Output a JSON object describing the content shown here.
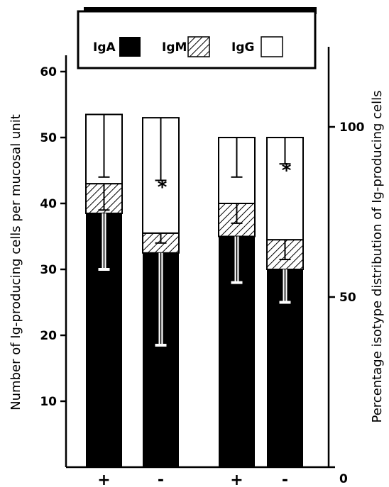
{
  "chart_data": {
    "type": "bar",
    "stacked": true,
    "categories": [
      "+",
      "-",
      "+",
      "-"
    ],
    "series": [
      {
        "name": "IgA",
        "values": [
          38.5,
          32.5,
          35,
          30
        ],
        "fill": "#000000"
      },
      {
        "name": "IgM",
        "values": [
          4.5,
          3,
          5,
          4.5
        ],
        "fill": "hatched"
      },
      {
        "name": "IgG",
        "values": [
          10.5,
          17.5,
          10,
          15.5
        ],
        "fill": "#ffffff"
      }
    ],
    "error_bars": {
      "IgA_lower": [
        30,
        18.5,
        28,
        25
      ],
      "IgM_lower": [
        39,
        34,
        37,
        31.5
      ],
      "IgG_lower": [
        44,
        43.5,
        44,
        46
      ]
    },
    "left_axis": {
      "label": "Number of Ig-producing cells per mucosal unit",
      "ylim": [
        0,
        60
      ],
      "ticks": [
        "10",
        "20",
        "30",
        "40",
        "50",
        "60"
      ]
    },
    "right_axis": {
      "label": "Percentage isotype distribution of Ig-producing cells",
      "ylim": [
        0,
        120
      ],
      "ticks": [
        "0",
        "50",
        "100"
      ]
    },
    "significance_marks": [
      {
        "bar": 1,
        "symbol": "*"
      },
      {
        "bar": 3,
        "symbol": "*"
      }
    ],
    "legend": {
      "placement": "top",
      "entries": [
        {
          "label": "IgA",
          "swatch": "solid-black"
        },
        {
          "label": "IgM",
          "swatch": "hatched"
        },
        {
          "label": "IgG",
          "swatch": "open-white"
        }
      ]
    }
  }
}
